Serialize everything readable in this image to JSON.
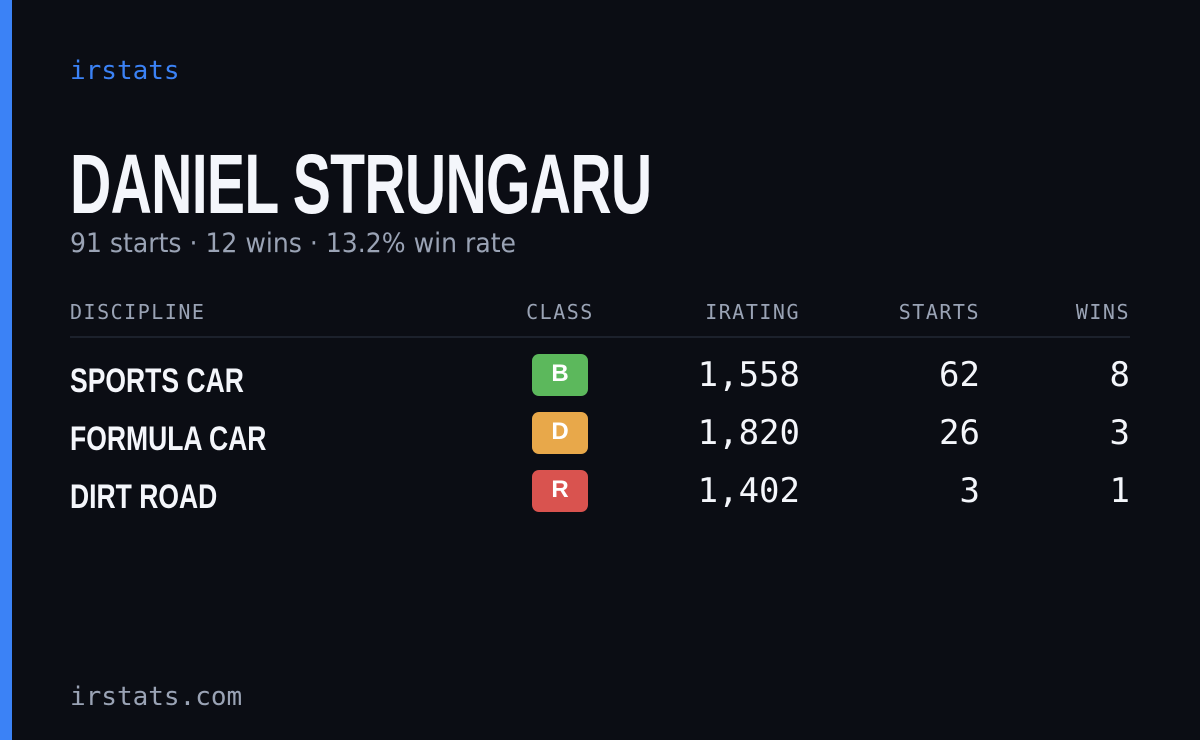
{
  "brand": "irstats",
  "name": "DANIEL STRUNGARU",
  "summary": "91 starts · 12 wins · 13.2% win rate",
  "table": {
    "headers": [
      "DISCIPLINE",
      "CLASS",
      "IRATING",
      "STARTS",
      "WINS"
    ],
    "rows": [
      [
        "SPORTS CAR",
        "B",
        "1,558",
        "62",
        "8"
      ],
      [
        "FORMULA CAR",
        "D",
        "1,820",
        "26",
        "3"
      ],
      [
        "DIRT ROAD",
        "R",
        "1,402",
        "3",
        "1"
      ]
    ]
  },
  "footer": "irstats.com"
}
